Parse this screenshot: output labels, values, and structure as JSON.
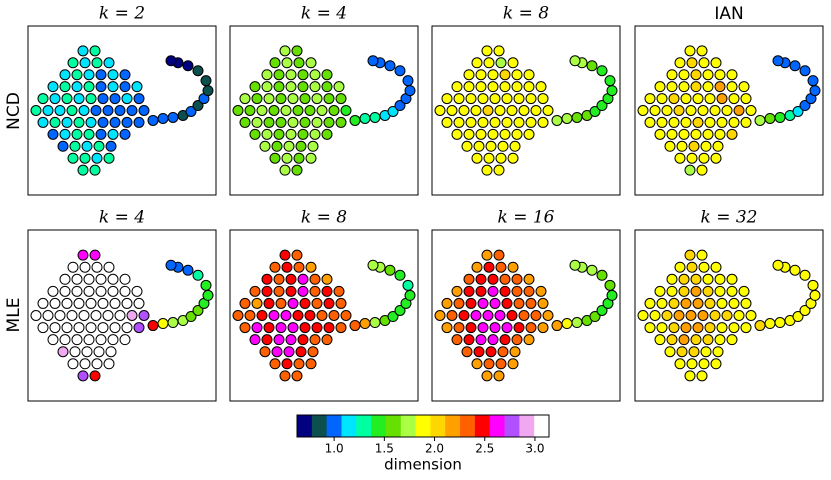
{
  "embedding": {
    "x": [
      55,
      67,
      45,
      57,
      69,
      81,
      37,
      49,
      61,
      73,
      85,
      97,
      25,
      37,
      49,
      61,
      73,
      85,
      97,
      109,
      15,
      27,
      39,
      51,
      63,
      75,
      87,
      99,
      111,
      8,
      20,
      32,
      44,
      56,
      68,
      80,
      92,
      104,
      116,
      15,
      27,
      39,
      51,
      63,
      75,
      87,
      99,
      111,
      25,
      37,
      49,
      61,
      73,
      85,
      97,
      35,
      47,
      59,
      71,
      83,
      45,
      57,
      69,
      81,
      55,
      67,
      125,
      135,
      145,
      155,
      163,
      170,
      176,
      180,
      178,
      170,
      160,
      150,
      143
    ],
    "y": [
      145,
      145,
      133,
      133,
      133,
      133,
      121,
      121,
      121,
      121,
      121,
      121,
      109,
      109,
      109,
      109,
      109,
      109,
      109,
      109,
      97,
      97,
      97,
      97,
      97,
      97,
      97,
      97,
      97,
      85,
      85,
      85,
      85,
      85,
      85,
      85,
      85,
      85,
      85,
      73,
      73,
      73,
      73,
      73,
      73,
      73,
      73,
      73,
      61,
      61,
      61,
      61,
      61,
      61,
      61,
      49,
      49,
      49,
      49,
      49,
      37,
      37,
      37,
      37,
      25,
      25,
      75,
      77,
      78,
      80,
      84,
      90,
      97,
      105,
      115,
      125,
      130,
      133,
      135
    ],
    "xlim": [
      0,
      188
    ],
    "ylim": [
      0,
      170
    ]
  },
  "row_labels": [
    "NCD",
    "MLE"
  ],
  "chart_data": [
    {
      "type": "scatter",
      "title": "k = 2",
      "title_font": "serif",
      "values": [
        1.15,
        1.3,
        1.3,
        1.15,
        1.3,
        1.15,
        1.15,
        1.3,
        1.15,
        1.0,
        1.15,
        1.0,
        1.15,
        1.3,
        1.15,
        1.3,
        1.0,
        1.15,
        1.0,
        1.15,
        1.3,
        1.15,
        1.3,
        1.15,
        1.3,
        1.0,
        1.0,
        1.15,
        1.0,
        1.3,
        1.15,
        1.15,
        1.3,
        1.15,
        1.0,
        1.0,
        1.0,
        1.0,
        1.0,
        1.15,
        1.3,
        1.15,
        1.3,
        1.15,
        1.0,
        1.0,
        1.0,
        1.0,
        1.0,
        1.15,
        1.3,
        1.3,
        1.0,
        1.15,
        1.0,
        1.0,
        1.3,
        1.15,
        1.3,
        1.0,
        1.3,
        1.3,
        1.15,
        1.3,
        1.3,
        1.3,
        1.0,
        1.0,
        1.0,
        0.85,
        1.0,
        0.85,
        1.0,
        0.85,
        0.85,
        0.85,
        0.7,
        0.7,
        0.7
      ]
    },
    {
      "type": "scatter",
      "title": "k = 4",
      "title_font": "serif",
      "values": [
        1.75,
        1.6,
        1.6,
        1.75,
        1.6,
        1.75,
        1.75,
        1.6,
        1.75,
        1.6,
        1.75,
        1.6,
        1.6,
        1.75,
        1.6,
        1.75,
        1.6,
        1.75,
        1.6,
        1.75,
        1.75,
        1.6,
        1.75,
        1.6,
        1.75,
        1.6,
        1.75,
        1.6,
        1.6,
        1.6,
        1.6,
        1.75,
        1.6,
        1.75,
        1.6,
        1.6,
        1.75,
        1.6,
        1.45,
        1.6,
        1.75,
        1.6,
        1.6,
        1.75,
        1.6,
        1.75,
        1.6,
        1.6,
        1.6,
        1.75,
        1.6,
        1.75,
        1.6,
        1.75,
        1.6,
        1.75,
        1.6,
        1.75,
        1.6,
        1.75,
        1.6,
        1.75,
        1.6,
        1.75,
        1.75,
        1.6,
        1.45,
        1.3,
        1.3,
        1.15,
        1.15,
        1.0,
        1.0,
        1.0,
        1.0,
        1.0,
        1.0,
        1.0,
        1.0
      ]
    },
    {
      "type": "scatter",
      "title": "k = 8",
      "title_font": "serif",
      "values": [
        1.9,
        1.9,
        1.9,
        1.9,
        1.75,
        1.9,
        1.9,
        1.9,
        1.9,
        2.05,
        1.9,
        1.9,
        1.9,
        1.9,
        1.9,
        1.9,
        1.9,
        1.9,
        1.9,
        1.9,
        1.9,
        1.9,
        1.9,
        1.9,
        1.9,
        1.9,
        1.9,
        1.9,
        1.9,
        1.9,
        1.9,
        1.9,
        1.9,
        2.05,
        1.9,
        1.9,
        1.9,
        1.9,
        1.9,
        1.9,
        1.9,
        1.9,
        1.9,
        1.9,
        1.9,
        1.9,
        1.9,
        1.9,
        1.9,
        1.9,
        1.9,
        1.9,
        1.9,
        1.9,
        1.9,
        1.9,
        1.9,
        1.9,
        1.9,
        1.9,
        1.9,
        1.9,
        1.9,
        1.9,
        1.9,
        1.9,
        1.75,
        1.75,
        1.6,
        1.6,
        1.45,
        1.45,
        1.45,
        1.45,
        1.45,
        1.45,
        1.6,
        1.75,
        1.75
      ]
    },
    {
      "type": "scatter",
      "title": "IAN",
      "title_font": "sans-serif",
      "values": [
        1.9,
        1.9,
        1.9,
        2.05,
        1.9,
        1.9,
        1.9,
        1.9,
        2.05,
        1.9,
        1.9,
        1.9,
        1.9,
        1.9,
        1.9,
        2.05,
        1.9,
        2.2,
        1.9,
        1.9,
        1.9,
        1.9,
        2.05,
        1.9,
        1.9,
        1.9,
        2.2,
        1.9,
        1.9,
        1.9,
        1.9,
        1.9,
        2.05,
        1.9,
        1.9,
        1.9,
        1.9,
        2.2,
        1.9,
        1.9,
        1.9,
        1.9,
        1.9,
        2.05,
        1.9,
        1.9,
        1.9,
        1.9,
        1.9,
        1.9,
        1.9,
        1.9,
        1.9,
        1.9,
        2.05,
        1.9,
        1.9,
        2.05,
        1.9,
        1.9,
        1.9,
        1.9,
        1.9,
        1.9,
        1.75,
        1.9,
        1.75,
        1.6,
        1.45,
        1.3,
        1.15,
        1.0,
        1.0,
        1.0,
        1.0,
        1.0,
        1.0,
        1.0,
        1.0
      ]
    },
    {
      "type": "scatter",
      "title": "k = 4",
      "title_font": "serif",
      "values": [
        2.6,
        2.6,
        3.1,
        3.1,
        3.1,
        3.1,
        3.1,
        3.1,
        3.1,
        3.1,
        3.1,
        3.1,
        3.1,
        3.1,
        3.1,
        3.1,
        3.1,
        3.1,
        3.1,
        3.1,
        3.1,
        3.1,
        3.1,
        3.1,
        3.1,
        3.1,
        3.1,
        3.1,
        3.1,
        3.1,
        3.1,
        3.1,
        3.1,
        3.1,
        3.1,
        3.1,
        3.1,
        2.9,
        2.8,
        3.1,
        3.1,
        3.1,
        3.1,
        3.1,
        3.1,
        3.1,
        3.1,
        2.8,
        3.1,
        3.1,
        3.1,
        3.1,
        3.1,
        3.1,
        3.1,
        2.9,
        3.1,
        3.1,
        3.1,
        3.1,
        3.1,
        3.1,
        3.1,
        3.1,
        2.8,
        2.5,
        2.5,
        1.9,
        1.75,
        1.75,
        1.6,
        1.6,
        1.45,
        1.45,
        1.45,
        1.3,
        1.0,
        1.0,
        1.0
      ]
    },
    {
      "type": "scatter",
      "title": "k = 8",
      "title_font": "serif",
      "values": [
        2.5,
        2.35,
        2.35,
        2.5,
        2.35,
        2.2,
        2.5,
        2.35,
        2.5,
        2.6,
        2.35,
        2.2,
        2.35,
        2.5,
        2.35,
        2.5,
        2.6,
        2.35,
        2.5,
        2.35,
        2.35,
        2.2,
        2.5,
        2.35,
        2.6,
        2.5,
        2.35,
        2.5,
        2.35,
        2.35,
        2.35,
        2.5,
        2.6,
        2.6,
        2.5,
        2.5,
        2.35,
        2.35,
        2.35,
        2.35,
        2.6,
        2.5,
        2.6,
        2.6,
        2.5,
        2.5,
        2.5,
        2.35,
        2.6,
        2.5,
        2.6,
        2.6,
        2.5,
        2.35,
        2.35,
        2.35,
        2.6,
        2.6,
        2.5,
        2.35,
        2.35,
        2.5,
        2.35,
        2.35,
        2.35,
        2.35,
        2.35,
        2.2,
        1.75,
        1.6,
        1.45,
        1.45,
        1.45,
        1.45,
        1.3,
        1.45,
        1.6,
        1.75,
        1.75
      ]
    },
    {
      "type": "scatter",
      "title": "k = 16",
      "title_font": "serif",
      "values": [
        2.2,
        2.35,
        2.2,
        2.5,
        2.35,
        2.2,
        2.35,
        2.5,
        2.5,
        2.35,
        2.35,
        2.2,
        2.2,
        2.5,
        2.5,
        2.6,
        2.5,
        2.35,
        2.35,
        2.2,
        2.2,
        2.35,
        2.5,
        2.6,
        2.6,
        2.5,
        2.35,
        2.35,
        2.2,
        2.2,
        2.35,
        2.5,
        2.6,
        2.6,
        2.6,
        2.5,
        2.35,
        2.35,
        2.2,
        2.2,
        2.35,
        2.5,
        2.6,
        2.6,
        2.6,
        2.5,
        2.35,
        2.2,
        2.35,
        2.5,
        2.6,
        2.6,
        2.5,
        2.35,
        2.2,
        2.35,
        2.5,
        2.5,
        2.35,
        2.2,
        2.2,
        2.35,
        2.35,
        2.2,
        2.2,
        2.2,
        2.2,
        1.9,
        1.75,
        1.6,
        1.6,
        1.45,
        1.45,
        1.45,
        1.6,
        1.6,
        1.75,
        1.75,
        1.75
      ]
    },
    {
      "type": "scatter",
      "title": "k = 32",
      "title_font": "serif",
      "values": [
        2.05,
        1.9,
        1.9,
        2.05,
        1.9,
        1.9,
        1.9,
        2.05,
        2.05,
        1.9,
        1.9,
        1.9,
        1.9,
        1.9,
        2.05,
        2.2,
        2.05,
        1.9,
        1.9,
        1.9,
        1.9,
        1.9,
        2.05,
        2.2,
        2.2,
        2.05,
        1.9,
        1.9,
        1.9,
        1.9,
        1.9,
        2.05,
        2.2,
        2.2,
        2.2,
        2.05,
        2.05,
        1.9,
        1.9,
        1.9,
        1.9,
        2.05,
        2.2,
        2.2,
        2.05,
        1.9,
        1.9,
        1.9,
        1.9,
        2.05,
        2.2,
        2.05,
        2.05,
        1.9,
        1.9,
        1.9,
        2.05,
        2.05,
        1.9,
        1.9,
        1.9,
        1.9,
        1.9,
        1.9,
        1.9,
        1.9,
        2.05,
        1.9,
        1.9,
        1.9,
        1.9,
        1.9,
        1.9,
        1.9,
        1.9,
        1.9,
        1.9,
        1.9,
        1.9
      ]
    }
  ],
  "colorbar": {
    "label": "dimension",
    "clim": [
      0.63,
      3.14
    ],
    "colors": [
      "#000080",
      "#0b4f4f",
      "#0066ff",
      "#00e5ff",
      "#00ffa0",
      "#22ee22",
      "#66e000",
      "#aaff44",
      "#ffff00",
      "#ffd700",
      "#ffa000",
      "#ff6000",
      "#ff0000",
      "#ff00ff",
      "#b050ff",
      "#f0a8f0",
      "#ffffff"
    ],
    "ticks": [
      {
        "value": 1,
        "label": "1.0"
      },
      {
        "value": 1.5,
        "label": "1.5"
      },
      {
        "value": 2,
        "label": "2.0"
      },
      {
        "value": 2.5,
        "label": "2.5"
      },
      {
        "value": 3,
        "label": "3.0"
      }
    ]
  }
}
